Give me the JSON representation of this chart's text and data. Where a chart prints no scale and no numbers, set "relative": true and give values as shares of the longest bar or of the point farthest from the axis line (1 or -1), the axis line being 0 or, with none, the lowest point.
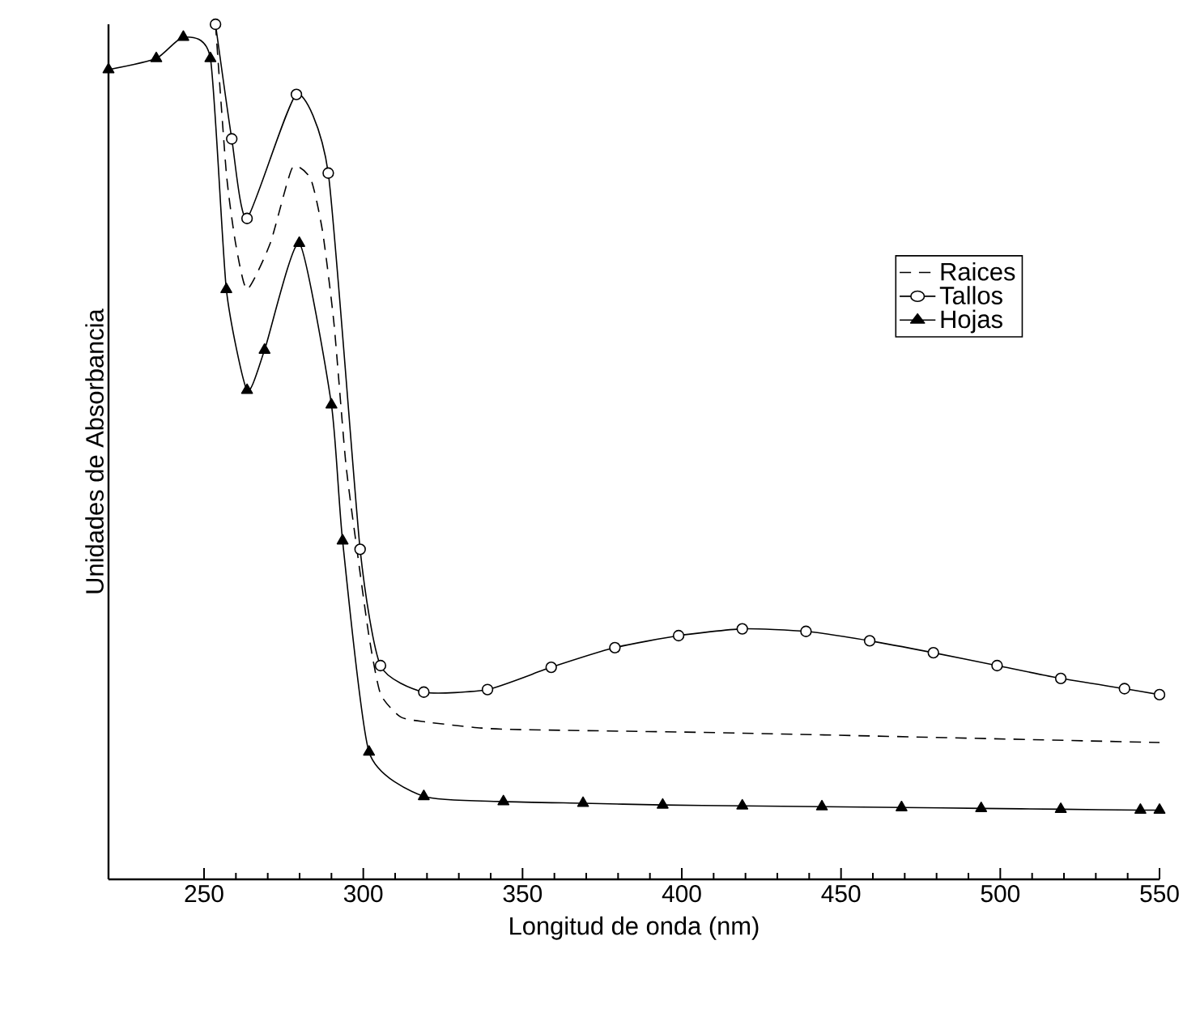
{
  "chart_data": {
    "type": "line",
    "relative": true,
    "xlabel": "Longitud de onda (nm)",
    "ylabel": "Unidades de Absorbancia",
    "xlim": [
      220,
      550
    ],
    "xticks": [
      250,
      300,
      350,
      400,
      450,
      500,
      550
    ],
    "legend": "right",
    "tick_labels": "x",
    "series": [
      {
        "name": "Raices",
        "color": "#000000",
        "line_style": "dashed",
        "marker": "none",
        "x": [
          253.6,
          257,
          259.9,
          263.5,
          270.8,
          277.7,
          283.5,
          287.2,
          290.8,
          294.5,
          298,
          301.8,
          305.4,
          311.7,
          319.8,
          337,
          350.9,
          419,
          550
        ],
        "values": [
          1.0,
          0.826,
          0.744,
          0.69,
          0.744,
          0.832,
          0.819,
          0.758,
          0.65,
          0.487,
          0.386,
          0.284,
          0.217,
          0.19,
          0.184,
          0.177,
          0.175,
          0.171,
          0.16
        ]
      },
      {
        "name": "Tallos",
        "color": "#000000",
        "line_style": "solid",
        "marker": "circle",
        "x": [
          253.6,
          258.7,
          263.5,
          279,
          289,
          299,
          305.4,
          319,
          339,
          359,
          379,
          399,
          419,
          439,
          459,
          479,
          499,
          519,
          539,
          550
        ],
        "values": [
          1.0,
          0.866,
          0.773,
          0.918,
          0.826,
          0.386,
          0.25,
          0.219,
          0.222,
          0.248,
          0.271,
          0.285,
          0.293,
          0.29,
          0.279,
          0.265,
          0.25,
          0.235,
          0.223,
          0.216
        ]
      },
      {
        "name": "Hojas",
        "color": "#000000",
        "line_style": "solid",
        "marker": "triangle",
        "x": [
          220,
          235,
          243.5,
          252,
          257,
          263.5,
          269,
          279.9,
          290,
          293.5,
          301.8,
          319,
          344,
          369,
          394,
          419,
          444,
          469,
          494,
          519,
          544,
          550
        ],
        "values": [
          0.947,
          0.96,
          0.985,
          0.96,
          0.69,
          0.572,
          0.619,
          0.744,
          0.555,
          0.396,
          0.149,
          0.097,
          0.091,
          0.089,
          0.087,
          0.086,
          0.085,
          0.084,
          0.083,
          0.082,
          0.081,
          0.081
        ]
      }
    ]
  }
}
